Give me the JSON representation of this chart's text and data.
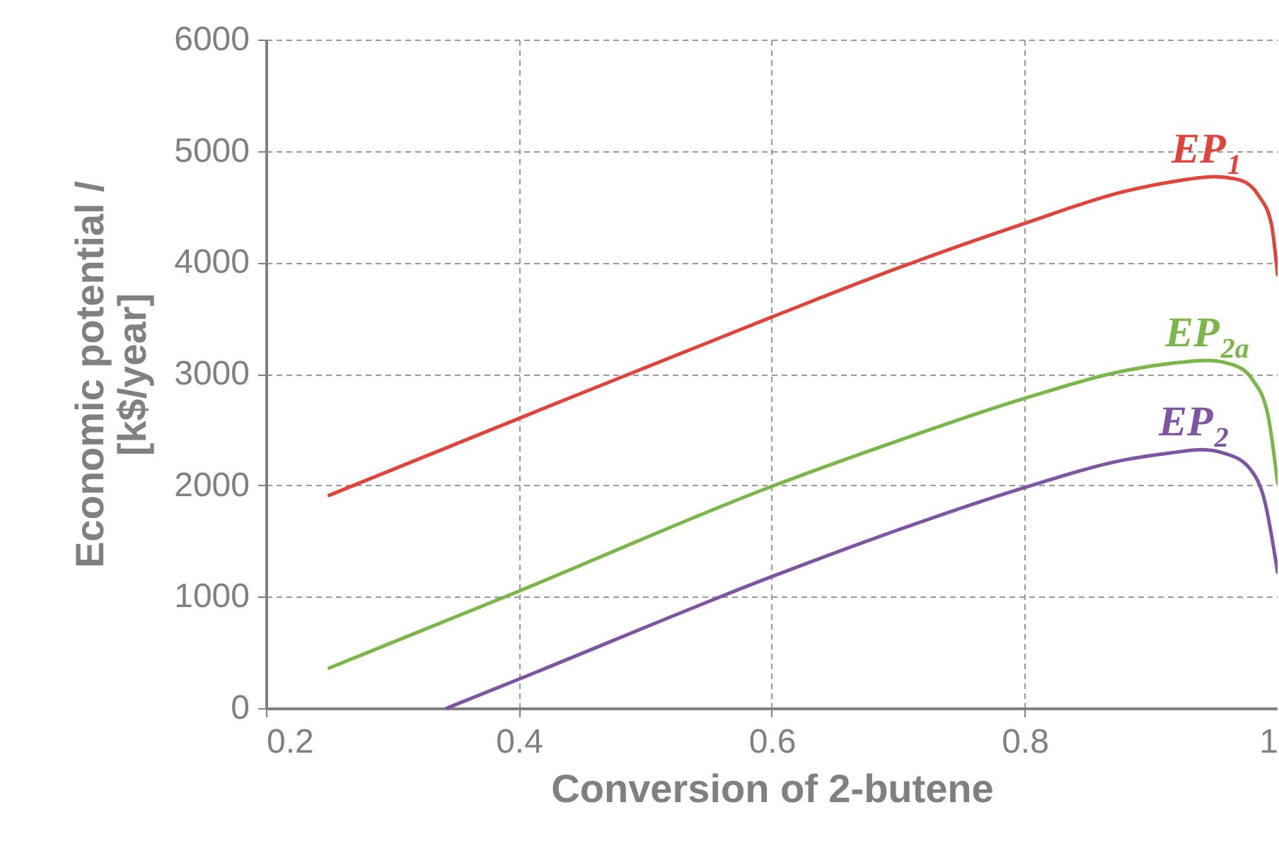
{
  "chart_data": {
    "type": "line",
    "xlabel": "Conversion of 2-butene",
    "ylabel": "Economic potential / [k$/year]",
    "xlim": [
      0.2,
      1
    ],
    "xticks": [
      0.2,
      0.4,
      0.6,
      0.8,
      1
    ],
    "ylim": [
      0,
      6000
    ],
    "yticks": [
      0,
      1000,
      2000,
      3000,
      4000,
      5000,
      6000
    ],
    "grid": true,
    "marker": "none",
    "line_style": "solid",
    "series": [
      {
        "name": "EP$_{1}$",
        "color": "#e0443a",
        "x": [
          0.25,
          0.4,
          0.6,
          0.7,
          0.8,
          0.88,
          0.92,
          0.95,
          0.97,
          0.985,
          0.995,
          1.0
        ],
        "values": [
          1910,
          2600,
          3510,
          3950,
          4350,
          4640,
          4730,
          4770,
          4740,
          4600,
          4350,
          3890
        ]
      },
      {
        "name": "EP$_{2a}$",
        "color": "#7ab648",
        "x": [
          0.25,
          0.4,
          0.6,
          0.7,
          0.8,
          0.88,
          0.92,
          0.945,
          0.965,
          0.98,
          0.992,
          1.0
        ],
        "values": [
          360,
          1050,
          1990,
          2400,
          2780,
          3030,
          3100,
          3120,
          3080,
          2950,
          2650,
          2020
        ]
      },
      {
        "name": "EP$_{2}$",
        "color": "#7d55a3",
        "x": [
          0.343,
          0.4,
          0.6,
          0.7,
          0.8,
          0.88,
          0.915,
          0.94,
          0.96,
          0.978,
          0.99,
          1.0
        ],
        "values": [
          0,
          260,
          1180,
          1600,
          1980,
          2230,
          2290,
          2320,
          2280,
          2150,
          1850,
          1220
        ]
      }
    ]
  }
}
